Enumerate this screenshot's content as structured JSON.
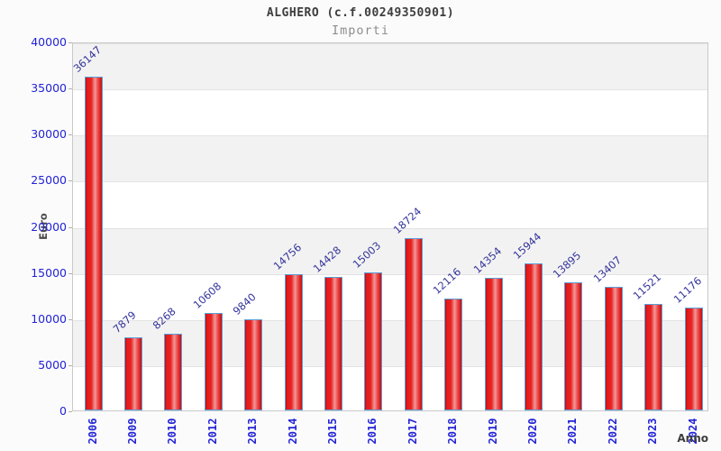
{
  "header": {
    "title": "ALGHERO (c.f.00249350901)",
    "subtitle": "Importi"
  },
  "chart_data": {
    "type": "bar",
    "title": "ALGHERO (c.f.00249350901)",
    "subtitle": "Importi",
    "xlabel": "Anno",
    "ylabel": "Euro",
    "categories": [
      "2006",
      "2009",
      "2010",
      "2012",
      "2013",
      "2014",
      "2015",
      "2016",
      "2017",
      "2018",
      "2019",
      "2020",
      "2021",
      "2022",
      "2023",
      "2024"
    ],
    "values": [
      36147,
      7879,
      8268,
      10608,
      9840,
      14756,
      14428,
      15003,
      18724,
      12116,
      14354,
      15944,
      13895,
      13407,
      11521,
      11176
    ],
    "ylim": [
      0,
      40000
    ],
    "yticks": [
      0,
      5000,
      10000,
      15000,
      20000,
      25000,
      30000,
      35000,
      40000
    ],
    "grid": "horizontal-bands-alternating",
    "legend_position": "none",
    "bar_labels_rotated": true,
    "colors": {
      "bar_fill_main": "#e31b1b",
      "bar_fill_highlight": "#f29898",
      "bar_border": "#5b9fd8",
      "tick_label": "#2323d7",
      "value_label": "#34349c",
      "band_gray": "#f2f2f2",
      "band_white": "#ffffff",
      "title_color": "#3d3d3d",
      "subtitle_color": "#8d8d8d"
    }
  }
}
